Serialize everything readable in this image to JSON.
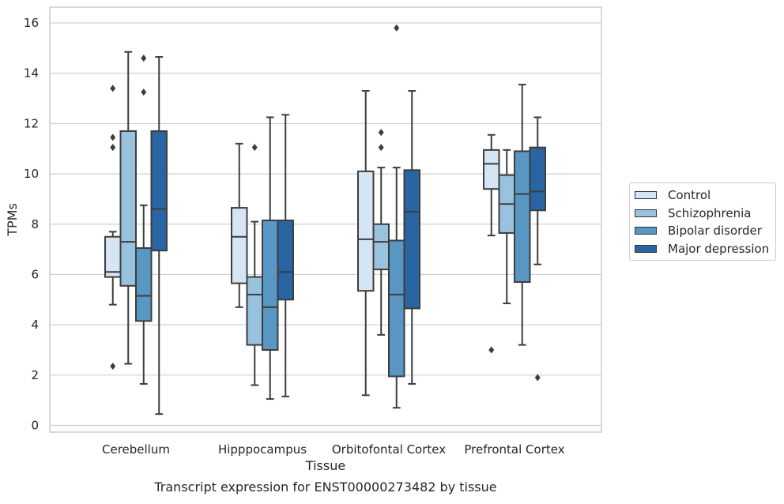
{
  "chart_data": {
    "type": "box",
    "xlabel": "Tissue",
    "ylabel": "TPMs",
    "caption": "Transcript expression for ENST00000273482 by tissue",
    "ylim": [
      -0.3,
      16.6
    ],
    "yticks": [
      0,
      2,
      4,
      6,
      8,
      10,
      12,
      14,
      16
    ],
    "grid": "horizontal",
    "legend_position": "right",
    "categories": [
      "Cerebellum",
      "Hipppocampus",
      "Orbitofontal Cortex",
      "Prefrontal Cortex"
    ],
    "series": [
      {
        "name": "Control",
        "color": "#d6e5f4",
        "boxes": [
          {
            "whisker_low": 4.8,
            "q1": 5.9,
            "median": 6.1,
            "q3": 7.5,
            "whisker_high": 7.7,
            "outliers": [
              2.35,
              11.05,
              11.45,
              13.4
            ]
          },
          {
            "whisker_low": 4.7,
            "q1": 5.65,
            "median": 7.5,
            "q3": 8.65,
            "whisker_high": 11.2,
            "outliers": []
          },
          {
            "whisker_low": 1.2,
            "q1": 5.35,
            "median": 7.4,
            "q3": 10.1,
            "whisker_high": 13.3,
            "outliers": []
          },
          {
            "whisker_low": 7.55,
            "q1": 9.4,
            "median": 10.4,
            "q3": 10.95,
            "whisker_high": 11.55,
            "outliers": [
              3.0
            ]
          }
        ]
      },
      {
        "name": "Schizophrenia",
        "color": "#99c2de",
        "boxes": [
          {
            "whisker_low": 2.45,
            "q1": 5.55,
            "median": 7.3,
            "q3": 11.7,
            "whisker_high": 14.85,
            "outliers": []
          },
          {
            "whisker_low": 1.6,
            "q1": 3.2,
            "median": 5.2,
            "q3": 5.9,
            "whisker_high": 8.1,
            "outliers": [
              11.05
            ]
          },
          {
            "whisker_low": 3.6,
            "q1": 6.2,
            "median": 7.3,
            "q3": 8.0,
            "whisker_high": 10.25,
            "outliers": [
              11.05,
              11.65
            ]
          },
          {
            "whisker_low": 4.85,
            "q1": 7.65,
            "median": 8.8,
            "q3": 9.95,
            "whisker_high": 10.95,
            "outliers": []
          }
        ]
      },
      {
        "name": "Bipolar disorder",
        "color": "#5896c4",
        "boxes": [
          {
            "whisker_low": 1.65,
            "q1": 4.15,
            "median": 5.15,
            "q3": 7.05,
            "whisker_high": 8.75,
            "outliers": [
              13.25,
              14.6
            ]
          },
          {
            "whisker_low": 1.05,
            "q1": 3.0,
            "median": 4.7,
            "q3": 8.15,
            "whisker_high": 12.25,
            "outliers": []
          },
          {
            "whisker_low": 0.7,
            "q1": 1.95,
            "median": 5.2,
            "q3": 7.35,
            "whisker_high": 10.25,
            "outliers": [
              15.8
            ]
          },
          {
            "whisker_low": 3.2,
            "q1": 5.7,
            "median": 9.2,
            "q3": 10.9,
            "whisker_high": 13.55,
            "outliers": []
          }
        ]
      },
      {
        "name": "Major depression",
        "color": "#2865a2",
        "boxes": [
          {
            "whisker_low": 0.45,
            "q1": 6.95,
            "median": 8.6,
            "q3": 11.7,
            "whisker_high": 14.65,
            "outliers": []
          },
          {
            "whisker_low": 1.15,
            "q1": 5.0,
            "median": 6.1,
            "q3": 8.15,
            "whisker_high": 12.35,
            "outliers": []
          },
          {
            "whisker_low": 1.65,
            "q1": 4.65,
            "median": 8.5,
            "q3": 10.15,
            "whisker_high": 13.3,
            "outliers": []
          },
          {
            "whisker_low": 6.4,
            "q1": 8.55,
            "median": 9.3,
            "q3": 11.05,
            "whisker_high": 12.25,
            "outliers": [
              1.9
            ]
          }
        ]
      }
    ]
  }
}
